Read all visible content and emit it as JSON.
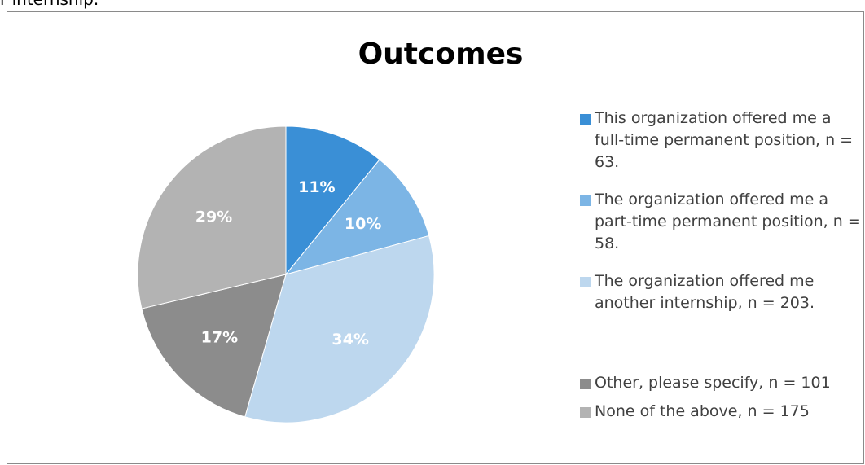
{
  "page_text": "r internship.",
  "chart_data": {
    "type": "pie",
    "title": "Outcomes",
    "categories": [
      "This organization offered me a full-time permanent position, n = 63.",
      "The organization offered me a part-time permanent position, n = 58.",
      "The organization offered me another internship, n = 203.",
      "Other, please specify, n = 101",
      "None of the above, n = 175"
    ],
    "values": [
      11,
      10,
      34,
      17,
      29
    ],
    "value_labels": [
      "11%",
      "10%",
      "34%",
      "17%",
      "29%"
    ],
    "colors": [
      "#3a8fd6",
      "#7cb5e5",
      "#bdd7ee",
      "#8c8c8c",
      "#b3b3b3"
    ],
    "legend": "right"
  }
}
